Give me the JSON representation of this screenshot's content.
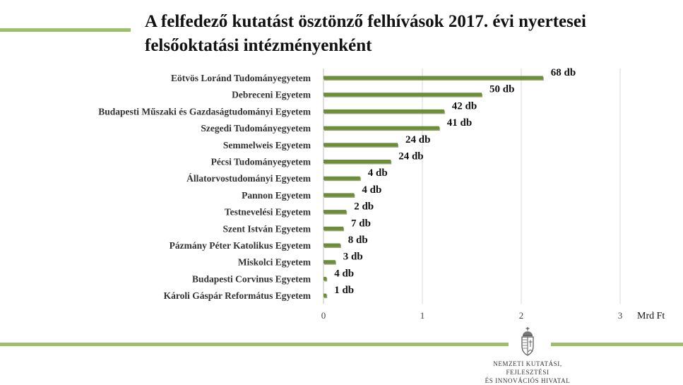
{
  "slide": {
    "title_line1": "A felfedező kutatást ösztönző felhívások 2017. évi nyertesei",
    "title_line2": "felsőoktatási intézményenként",
    "org_line1": "Nemzeti Kutatási, Fejlesztési",
    "org_line2": "És Innovációs Hivatal",
    "accent_color": "#9bc06a",
    "bar_color": "#6b8f35",
    "emblem_icon": "hungarian-coat-of-arms-icon"
  },
  "chart_data": {
    "type": "bar",
    "orientation": "horizontal",
    "title": "",
    "xlabel": "Mrd Ft",
    "ylabel": "",
    "xlim": [
      0,
      3
    ],
    "xticks": [
      "0",
      "1",
      "2",
      "3"
    ],
    "grid": true,
    "categories": [
      "Eötvös Loránd Tudományegyetem",
      "Debreceni Egyetem",
      "Budapesti Műszaki és Gazdaságtudományi Egyetem",
      "Szegedi Tudományegyetem",
      "Semmelweis Egyetem",
      "Pécsi Tudományegyetem",
      "Állatorvostudományi Egyetem",
      "Pannon Egyetem",
      "Testnevelési Egyetem",
      "Szent István Egyetem",
      "Pázmány Péter Katolikus Egyetem",
      "Miskolci Egyetem",
      "Budapesti Corvinus Egyetem",
      "Károli Gáspár Református Egyetem"
    ],
    "values": [
      2.22,
      1.6,
      1.22,
      1.17,
      0.75,
      0.68,
      0.37,
      0.31,
      0.23,
      0.2,
      0.17,
      0.12,
      0.03,
      0.03
    ],
    "data_labels": [
      "68 db",
      "50 db",
      "42 db",
      "41 db",
      "24 db",
      "24 db",
      "4 db",
      "4 db",
      "2 db",
      "7 db",
      "8 db",
      "3 db",
      "4 db",
      "1 db"
    ]
  }
}
